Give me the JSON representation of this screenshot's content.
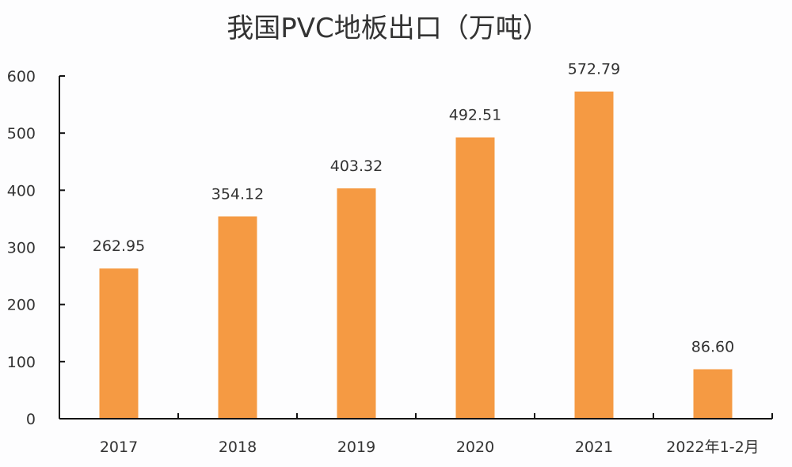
{
  "chart_data": {
    "type": "bar",
    "title": "我国PVC地板出口（万吨）",
    "categories": [
      "2017",
      "2018",
      "2019",
      "2020",
      "2021",
      "2022年1-2月"
    ],
    "values": [
      262.95,
      354.12,
      403.32,
      492.51,
      572.79,
      86.6
    ],
    "data_labels": [
      "262.95",
      "354.12",
      "403.32",
      "492.51",
      "572.79",
      "86.60"
    ],
    "xlabel": "",
    "ylabel": "",
    "ylim": [
      0,
      600
    ],
    "yticks": [
      "0",
      "100",
      "200",
      "300",
      "400",
      "500",
      "600"
    ],
    "grid": false,
    "legend": "none",
    "bar_color": "#F59A43"
  }
}
